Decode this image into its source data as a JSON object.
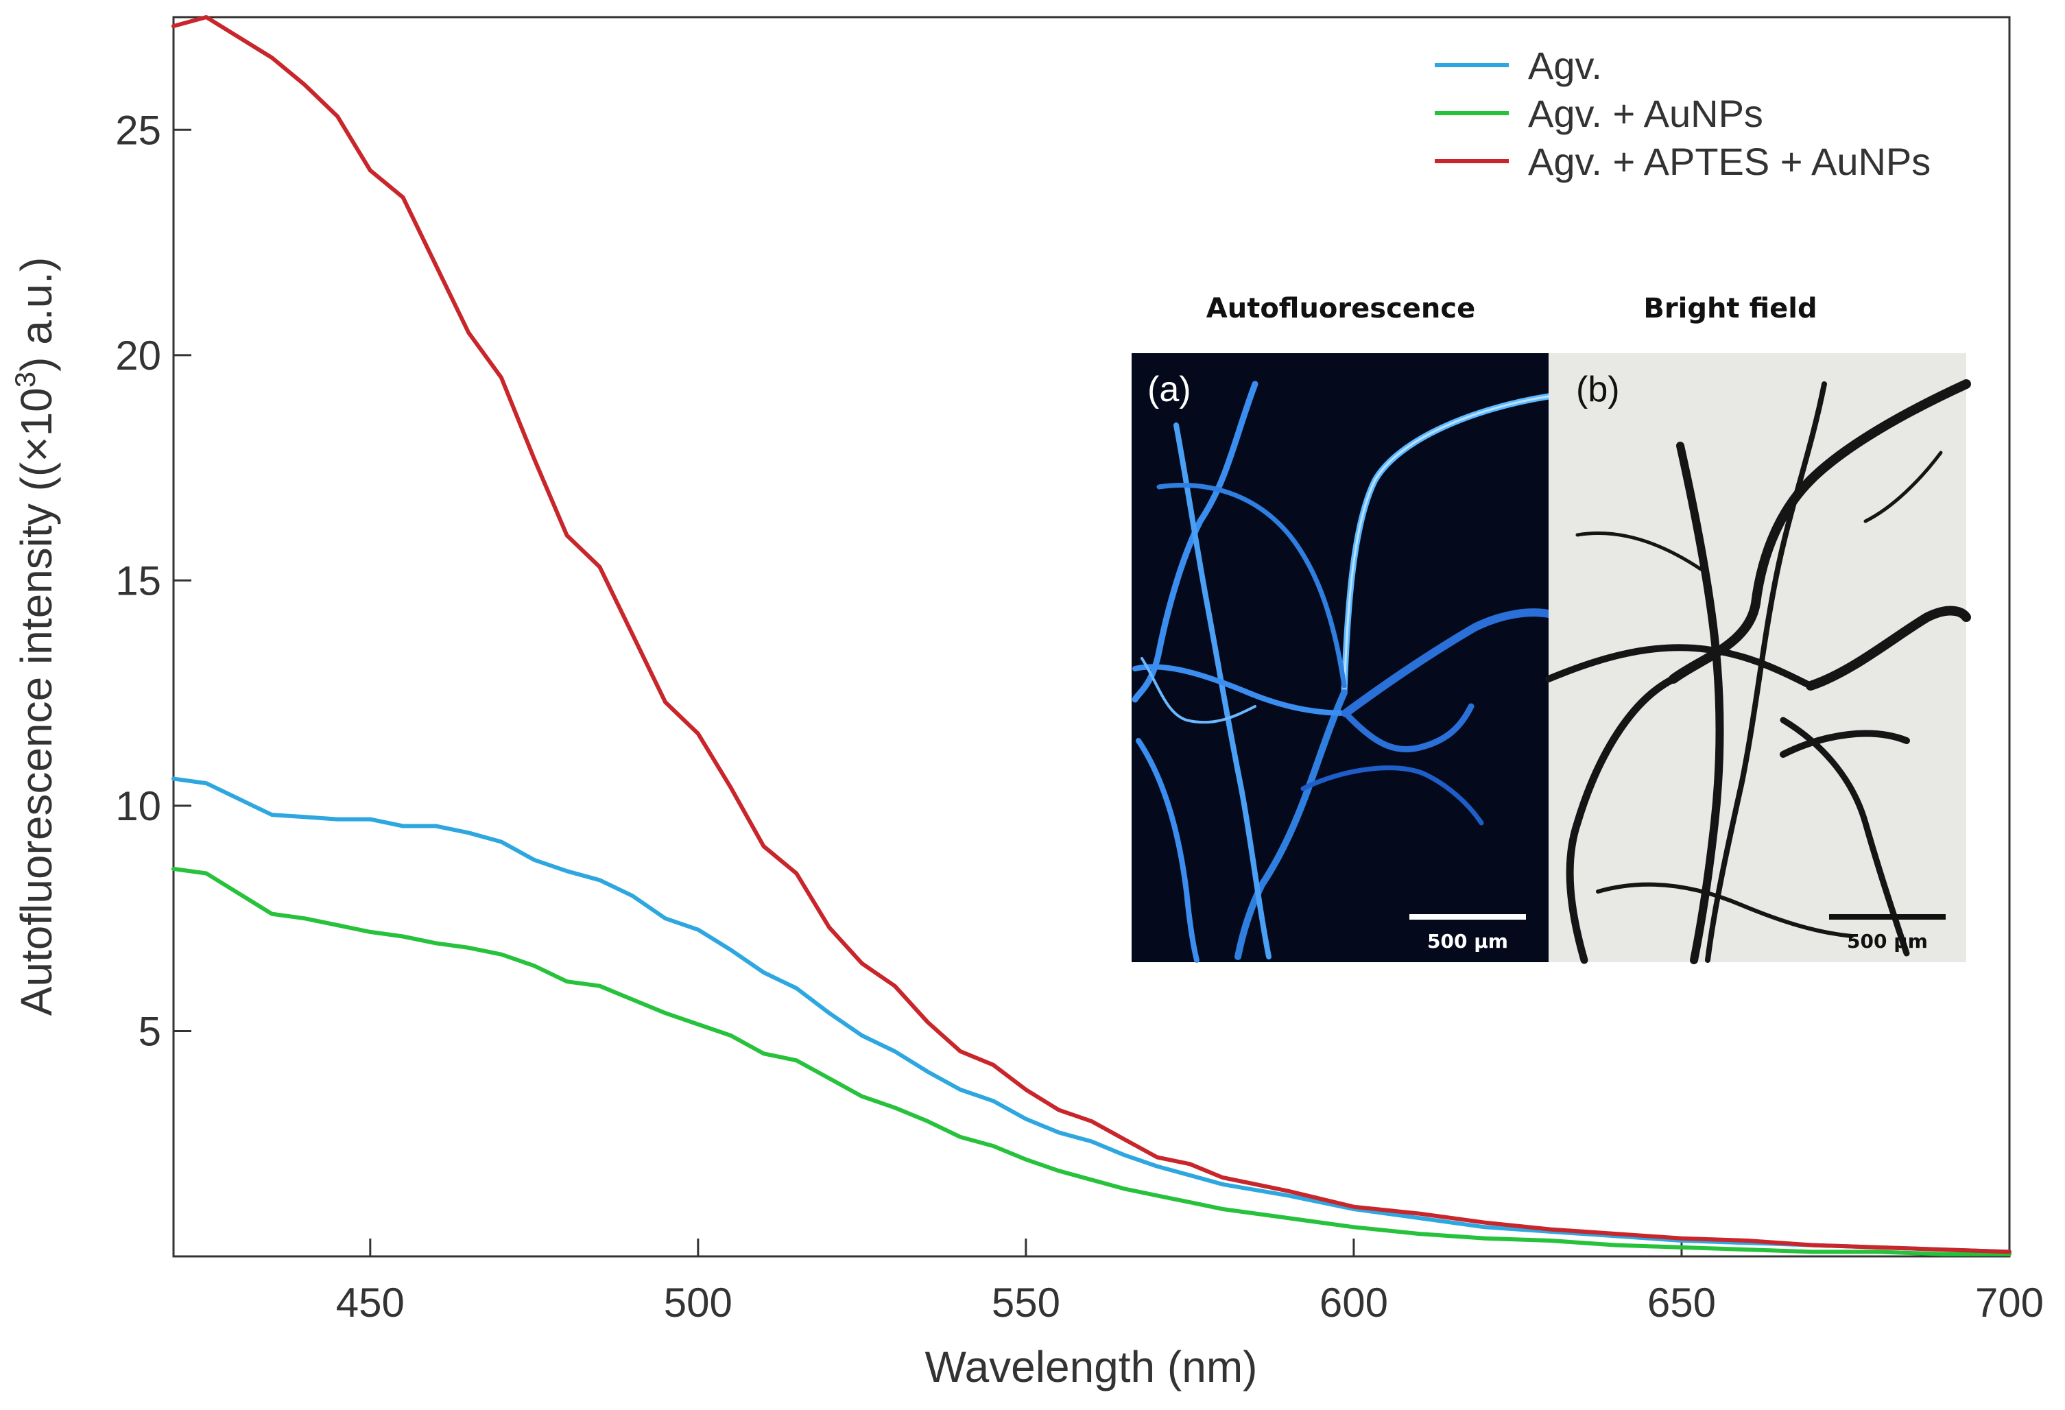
{
  "chart_data": {
    "type": "line",
    "xlabel": "Wavelength (nm)",
    "ylabel_prefix": "Autofluorescence intensity ((×10",
    "ylabel_exponent": "3",
    "ylabel_suffix": ") a.u.)",
    "xlim": [
      420,
      700
    ],
    "ylim": [
      0,
      27.5
    ],
    "xticks": [
      450,
      500,
      550,
      600,
      650,
      700
    ],
    "yticks": [
      5,
      10,
      15,
      20,
      25
    ],
    "grid": false,
    "legend_position": "top-right",
    "x": [
      420,
      425,
      435,
      440,
      445,
      450,
      455,
      460,
      465,
      470,
      475,
      480,
      485,
      490,
      495,
      500,
      505,
      510,
      515,
      520,
      525,
      530,
      535,
      540,
      545,
      550,
      555,
      560,
      565,
      570,
      575,
      580,
      590,
      600,
      610,
      620,
      630,
      640,
      650,
      660,
      670,
      680,
      690,
      700
    ],
    "series": [
      {
        "name": "Agv.",
        "color": "#2ea7e0",
        "values": [
          10.6,
          10.5,
          9.8,
          9.75,
          9.7,
          9.7,
          9.55,
          9.55,
          9.4,
          9.2,
          8.8,
          8.55,
          8.35,
          8.0,
          7.5,
          7.25,
          6.8,
          6.3,
          5.95,
          5.4,
          4.9,
          4.55,
          4.1,
          3.7,
          3.45,
          3.05,
          2.75,
          2.55,
          2.25,
          2.0,
          1.8,
          1.6,
          1.35,
          1.05,
          0.85,
          0.65,
          0.55,
          0.45,
          0.35,
          0.3,
          0.25,
          0.2,
          0.15,
          0.1
        ]
      },
      {
        "name": "Agv. + AuNPs",
        "color": "#27c23c",
        "values": [
          8.6,
          8.5,
          7.6,
          7.5,
          7.35,
          7.2,
          7.1,
          6.95,
          6.85,
          6.7,
          6.45,
          6.1,
          6.0,
          5.7,
          5.4,
          5.15,
          4.9,
          4.5,
          4.35,
          3.95,
          3.55,
          3.3,
          3.0,
          2.65,
          2.45,
          2.15,
          1.9,
          1.7,
          1.5,
          1.35,
          1.2,
          1.05,
          0.85,
          0.65,
          0.5,
          0.4,
          0.35,
          0.25,
          0.2,
          0.15,
          0.1,
          0.1,
          0.05,
          0.05
        ]
      },
      {
        "name": "Agv. + APTES + AuNPs",
        "color": "#c8262b",
        "values": [
          27.3,
          27.5,
          26.6,
          26.0,
          25.3,
          24.1,
          23.5,
          22.0,
          20.5,
          19.5,
          17.7,
          16.0,
          15.3,
          13.8,
          12.3,
          11.6,
          10.4,
          9.1,
          8.5,
          7.3,
          6.5,
          6.0,
          5.2,
          4.55,
          4.25,
          3.7,
          3.25,
          3.0,
          2.6,
          2.2,
          2.05,
          1.75,
          1.45,
          1.1,
          0.95,
          0.75,
          0.6,
          0.5,
          0.4,
          0.35,
          0.25,
          0.2,
          0.15,
          0.1
        ]
      }
    ]
  },
  "inset": {
    "title_left": "Autofluorescence",
    "title_right": "Bright field",
    "panel_a_label": "(a)",
    "panel_b_label": "(b)",
    "scale_bar_label_a": "500 µm",
    "scale_bar_label_b": "500 µm"
  }
}
